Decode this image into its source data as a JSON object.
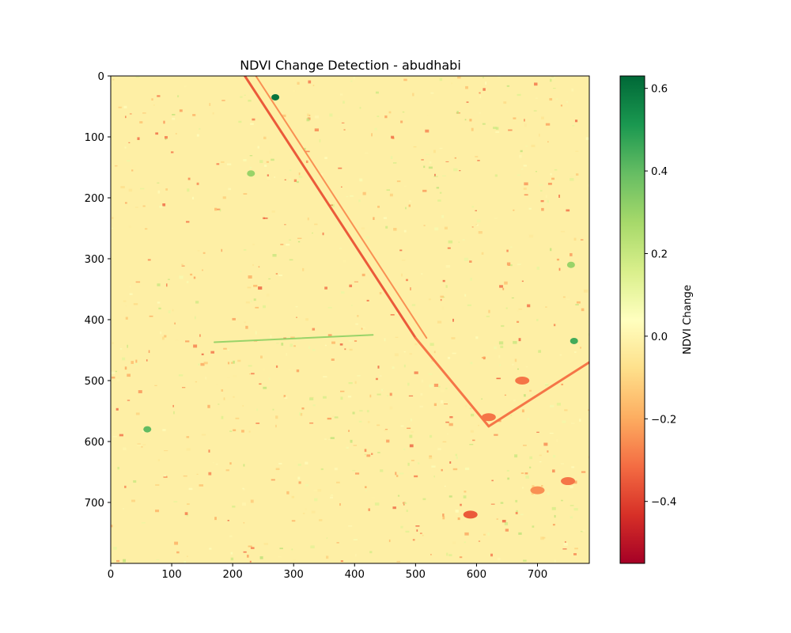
{
  "chart_data": {
    "type": "heatmap",
    "title": "NDVI Change Detection - abudhabi",
    "xlabel": "",
    "ylabel": "",
    "image_width": 785,
    "image_height": 800,
    "x_ticks": [
      0,
      100,
      200,
      300,
      400,
      500,
      600,
      700
    ],
    "y_ticks": [
      0,
      100,
      200,
      300,
      400,
      500,
      600,
      700
    ],
    "y_axis_inverted": true,
    "colormap": "RdYlGn",
    "colormap_stops": [
      "#a50026",
      "#d73027",
      "#f46d43",
      "#fdae61",
      "#fee08b",
      "#ffffbf",
      "#d9ef8b",
      "#a6d96a",
      "#66bd63",
      "#1a9850",
      "#006837"
    ],
    "colorbar": {
      "label": "NDVI Change",
      "min": -0.55,
      "max": 0.63,
      "ticks": [
        0.6,
        0.4,
        0.2,
        0.0,
        -0.2,
        -0.4
      ],
      "tick_labels": [
        "0.6",
        "0.4",
        "0.2",
        "0.0",
        "−0.2",
        "−0.4"
      ]
    },
    "background_value": -0.02,
    "features": {
      "highway_diagonal": {
        "from": [
          220,
          0
        ],
        "to": [
          500,
          430
        ],
        "value": -0.35
      },
      "highway_south": {
        "from": [
          500,
          430
        ],
        "to": [
          620,
          575
        ],
        "value": -0.3
      },
      "road_curve_east": {
        "from": [
          620,
          575
        ],
        "to": [
          785,
          470
        ],
        "value": -0.3
      },
      "green_canal": {
        "from": [
          170,
          437
        ],
        "to": [
          430,
          425
        ],
        "value": 0.3
      },
      "green_patches": [
        {
          "x": 270,
          "y": 35,
          "value": 0.6
        },
        {
          "x": 760,
          "y": 435,
          "value": 0.45
        },
        {
          "x": 755,
          "y": 310,
          "value": 0.3
        },
        {
          "x": 60,
          "y": 580,
          "value": 0.4
        },
        {
          "x": 230,
          "y": 160,
          "value": 0.3
        }
      ],
      "red_patches": [
        {
          "x": 590,
          "y": 720,
          "value": -0.35
        },
        {
          "x": 750,
          "y": 665,
          "value": -0.3
        },
        {
          "x": 700,
          "y": 680,
          "value": -0.25
        },
        {
          "x": 620,
          "y": 560,
          "value": -0.3
        },
        {
          "x": 675,
          "y": 500,
          "value": -0.3
        }
      ]
    }
  }
}
